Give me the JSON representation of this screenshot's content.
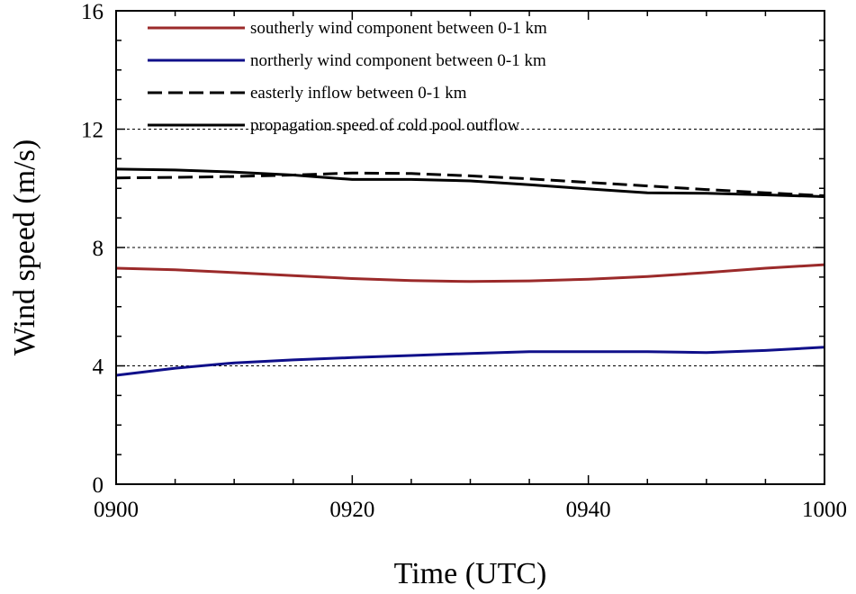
{
  "chart_data": {
    "type": "line",
    "xlabel": "Time (UTC)",
    "ylabel": "Wind speed (m/s)",
    "xlim": [
      0,
      60
    ],
    "ylim": [
      0,
      16
    ],
    "x_ticks": [
      {
        "value": 0,
        "label": "0900"
      },
      {
        "value": 20,
        "label": "0920"
      },
      {
        "value": 40,
        "label": "0940"
      },
      {
        "value": 60,
        "label": "1000"
      }
    ],
    "y_ticks": [
      {
        "value": 0,
        "label": "0"
      },
      {
        "value": 4,
        "label": "4"
      },
      {
        "value": 8,
        "label": "8"
      },
      {
        "value": 12,
        "label": "12"
      },
      {
        "value": 16,
        "label": "16"
      }
    ],
    "grid_y": [
      4,
      8,
      12
    ],
    "legend_position": "top-left",
    "series": [
      {
        "name": "southerly wind component between 0-1 km",
        "color": "#9b2a2a",
        "dash": "solid",
        "x": [
          0,
          5,
          10,
          15,
          20,
          25,
          30,
          35,
          40,
          45,
          50,
          55,
          60
        ],
        "y": [
          7.3,
          7.25,
          7.15,
          7.05,
          6.95,
          6.88,
          6.85,
          6.87,
          6.93,
          7.02,
          7.15,
          7.3,
          7.42
        ]
      },
      {
        "name": "northerly wind component between 0-1 km",
        "color": "#10108a",
        "dash": "solid",
        "x": [
          0,
          5,
          10,
          15,
          20,
          25,
          30,
          35,
          40,
          45,
          50,
          55,
          60
        ],
        "y": [
          3.68,
          3.92,
          4.1,
          4.2,
          4.28,
          4.35,
          4.42,
          4.48,
          4.48,
          4.48,
          4.45,
          4.52,
          4.63
        ]
      },
      {
        "name": "easterly inflow between 0-1 km",
        "color": "#000000",
        "dash": "dashed",
        "x": [
          0,
          5,
          10,
          15,
          20,
          25,
          30,
          35,
          40,
          45,
          50,
          55,
          60
        ],
        "y": [
          10.35,
          10.37,
          10.4,
          10.45,
          10.52,
          10.5,
          10.42,
          10.32,
          10.2,
          10.08,
          9.96,
          9.85,
          9.75
        ]
      },
      {
        "name": "propagation speed of cold pool outflow",
        "color": "#000000",
        "dash": "solid",
        "x": [
          0,
          5,
          10,
          15,
          20,
          25,
          30,
          35,
          40,
          45,
          50,
          55,
          60
        ],
        "y": [
          10.65,
          10.62,
          10.55,
          10.45,
          10.3,
          10.3,
          10.25,
          10.12,
          9.98,
          9.85,
          9.83,
          9.78,
          9.72
        ]
      }
    ]
  }
}
